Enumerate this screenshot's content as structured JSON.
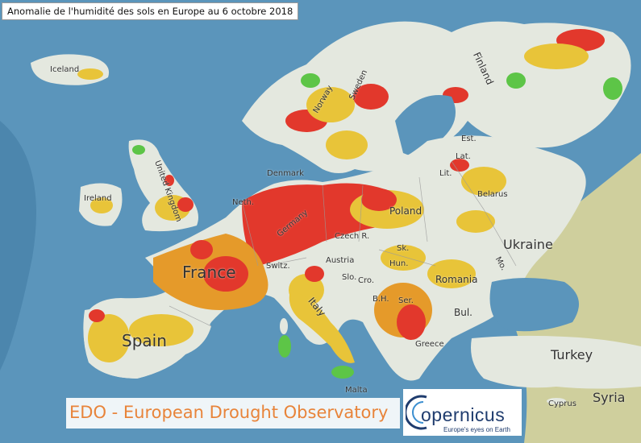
{
  "title": "Anomalie de l'humidité des sols en Europe au 6 octobre 2018",
  "labels": {
    "iceland": "Iceland",
    "norway": "Norway",
    "sweden": "Sweden",
    "finland": "Finland",
    "denmark": "Denmark",
    "ireland": "Ireland",
    "united_kingdom": "United Kingdom",
    "est": "Est.",
    "lat": "Lat.",
    "lit": "Lit.",
    "belarus": "Belarus",
    "poland": "Poland",
    "germany": "Germany",
    "neth": "Neth.",
    "czech": "Czech R.",
    "sk": "Sk.",
    "ukraine": "Ukraine",
    "mo": "Mo.",
    "france": "France",
    "switz": "Switz.",
    "austria": "Austria",
    "hun": "Hun.",
    "slo": "Slo.",
    "cro": "Cro.",
    "romania": "Romania",
    "bh": "B.H.",
    "ser": "Ser.",
    "italy": "Italy",
    "bul": "Bul.",
    "spain": "Spain",
    "greece": "Greece",
    "turkey": "Turkey",
    "malta": "Malta",
    "cyprus": "Cyprus",
    "syria": "Syria"
  },
  "footer": {
    "edo": "EDO - European Drought Observatory",
    "copernicus": "opernicus",
    "tagline": "Europe's eyes on Earth"
  },
  "colors": {
    "sea": "#5b95bb",
    "land_normal": "#e4e8df",
    "moderate_dry": "#e8c439",
    "dry": "#e59a2a",
    "very_dry": "#e2382c",
    "wet": "#5dc547",
    "outside": "#cfcf9d",
    "edo_text": "#e8843a",
    "copernicus_text": "#1f3c6e"
  }
}
